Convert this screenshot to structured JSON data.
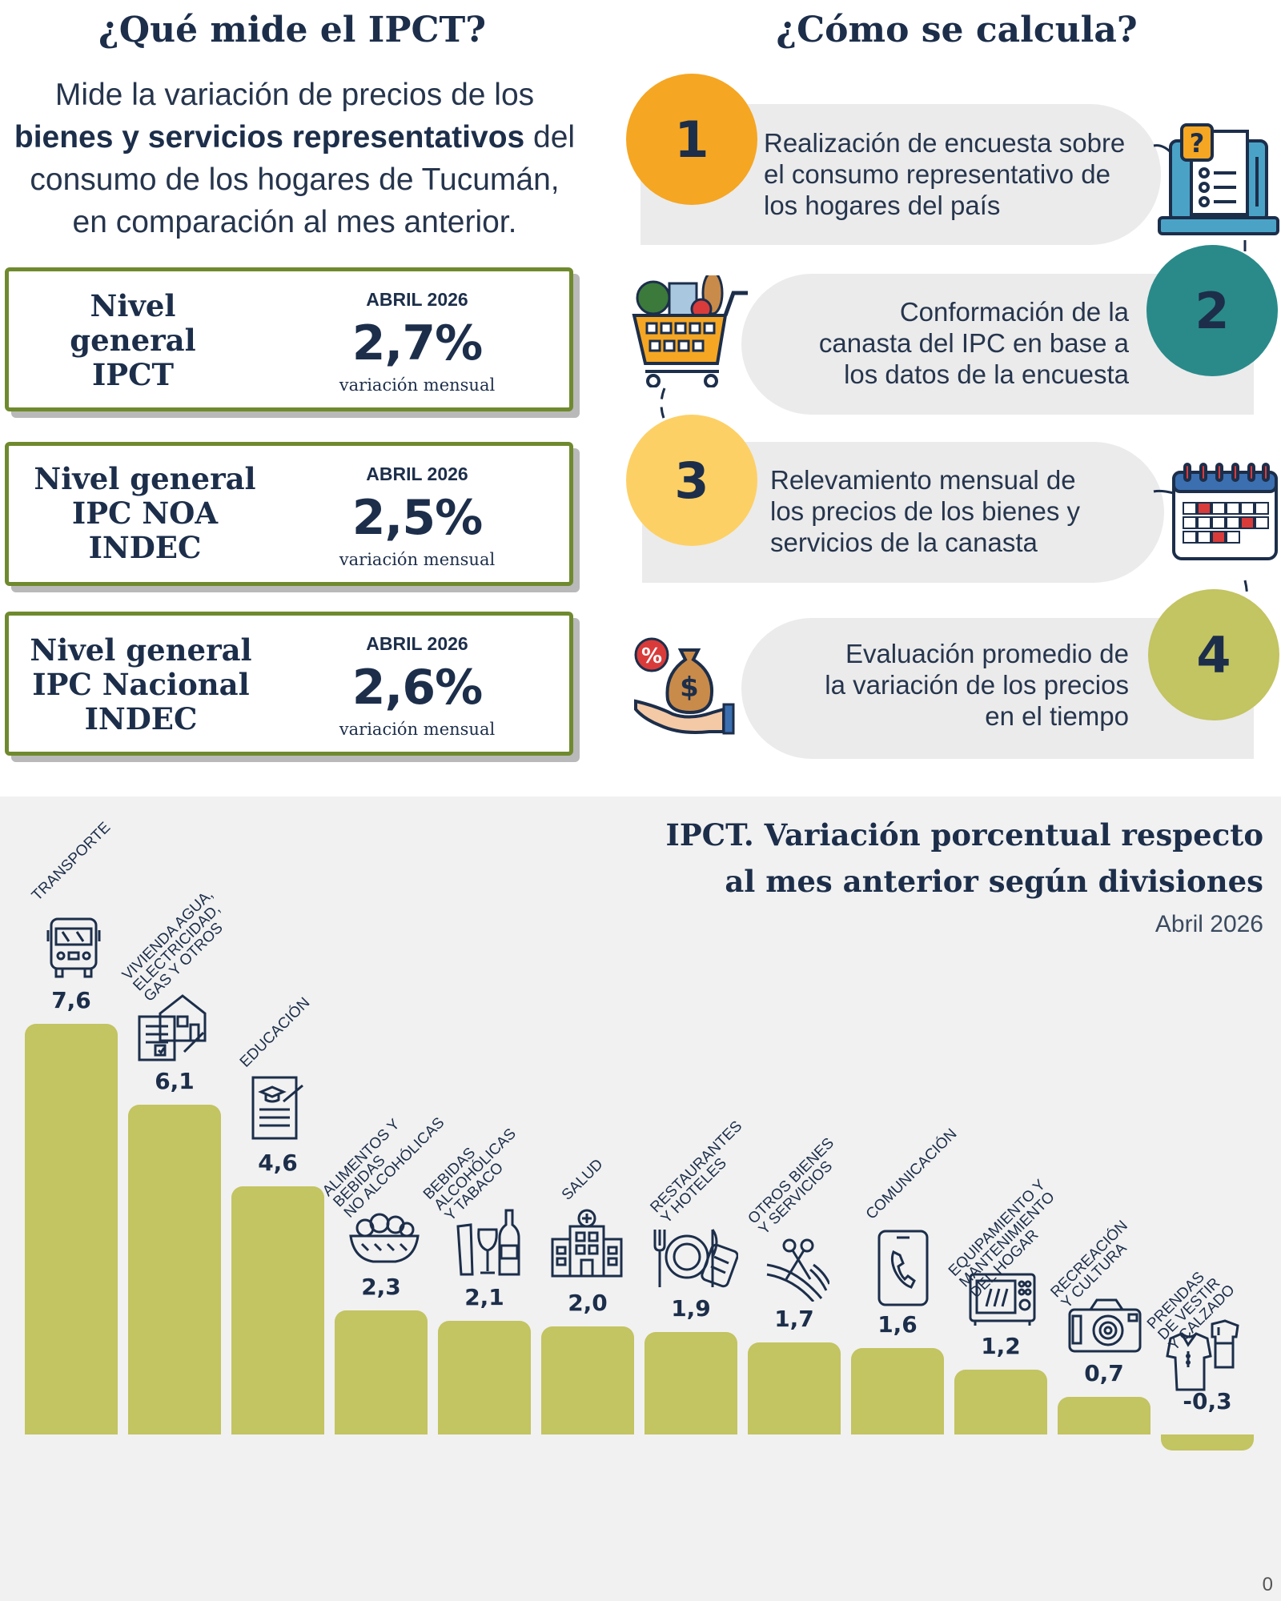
{
  "left": {
    "title": "¿Qué mide el IPCT?",
    "intro_line1": "Mide la variación de precios de los",
    "intro_bold": "bienes y servicios representativos",
    "intro_line2_rest": " del",
    "intro_line3": "consumo de los hogares de Tucumán,",
    "intro_line4": "en comparación al mes anterior.",
    "cards": [
      {
        "label_1": "Nivel",
        "label_2": "general",
        "label_3": "IPCT",
        "month": "ABRIL 2026",
        "value": "2,7%",
        "sub": "variación mensual"
      },
      {
        "label_1": "Nivel general",
        "label_2": "IPC NOA",
        "label_3": "INDEC",
        "month": "ABRIL 2026",
        "value": "2,5%",
        "sub": "variación mensual"
      },
      {
        "label_1": "Nivel general",
        "label_2": "IPC Nacional",
        "label_3": "INDEC",
        "month": "ABRIL 2026",
        "value": "2,6%",
        "sub": "variación mensual"
      }
    ]
  },
  "right": {
    "title": "¿Cómo se calcula?",
    "steps": [
      {
        "number": "1",
        "l1": "Realización de encuesta sobre",
        "l2": "el consumo representativo de",
        "l3": "los hogares del país",
        "color": "#f5a623",
        "icon": "survey-laptop-icon"
      },
      {
        "number": "2",
        "l1": "Conformación de la",
        "l2": "canasta del IPC en base a",
        "l3": "los datos de la encuesta",
        "color": "#2a8a8a",
        "icon": "shopping-cart-icon"
      },
      {
        "number": "3",
        "l1": "Relevamiento mensual de",
        "l2": "los precios de los bienes y",
        "l3": "servicios de la canasta",
        "color": "#fdd066",
        "icon": "calendar-icon"
      },
      {
        "number": "4",
        "l1": "Evaluación promedio de",
        "l2": "la variación de los precios",
        "l3": "en el tiempo",
        "color": "#c3c462",
        "icon": "money-bag-hand-icon"
      }
    ]
  },
  "chart_data": {
    "type": "bar",
    "title_line1": "IPCT. Variación porcentual respecto",
    "title_line2": "al mes anterior según divisiones",
    "subtitle": "Abril 2026",
    "categories": [
      "TRANSPORTE",
      "VIVIENDA AGUA,\nELECTRICIDAD,\nGAS Y OTROS",
      "EDUCACIÓN",
      "ALIMENTOS Y\nBEBIDAS\nNO ALCOHÓLICAS",
      "BEBIDAS\nALCOHÓLICAS\nY TABACO",
      "SALUD",
      "RESTAURANTES\nY HOTELES",
      "OTROS BIENES\nY SERVICIOS",
      "COMUNICACIÓN",
      "EQUIPAMIENTO Y\nMANTENIMIENTO\nDEL HOGAR",
      "RECREACIÓN\nY CULTURA",
      "PRENDAS\nDE VESTIR\nY CALZADO"
    ],
    "values": [
      7.6,
      6.1,
      4.6,
      2.3,
      2.1,
      2.0,
      1.9,
      1.7,
      1.6,
      1.2,
      0.7,
      -0.3
    ],
    "value_labels": [
      "7,6",
      "6,1",
      "4,6",
      "2,3",
      "2,1",
      "2,0",
      "1,9",
      "1,7",
      "1,6",
      "1,2",
      "0,7",
      "-0,3"
    ],
    "icons": [
      "bus-icon",
      "house-documents-icon",
      "education-document-icon",
      "food-bowl-icon",
      "bottle-glass-icon",
      "hospital-icon",
      "restaurant-hotel-icon",
      "cut-ribbon-icon",
      "phone-icon",
      "microwave-icon",
      "camera-icon",
      "clothes-icon"
    ],
    "bar_color": "#c3c462",
    "grid": false,
    "legend": "none"
  },
  "footer": "0"
}
